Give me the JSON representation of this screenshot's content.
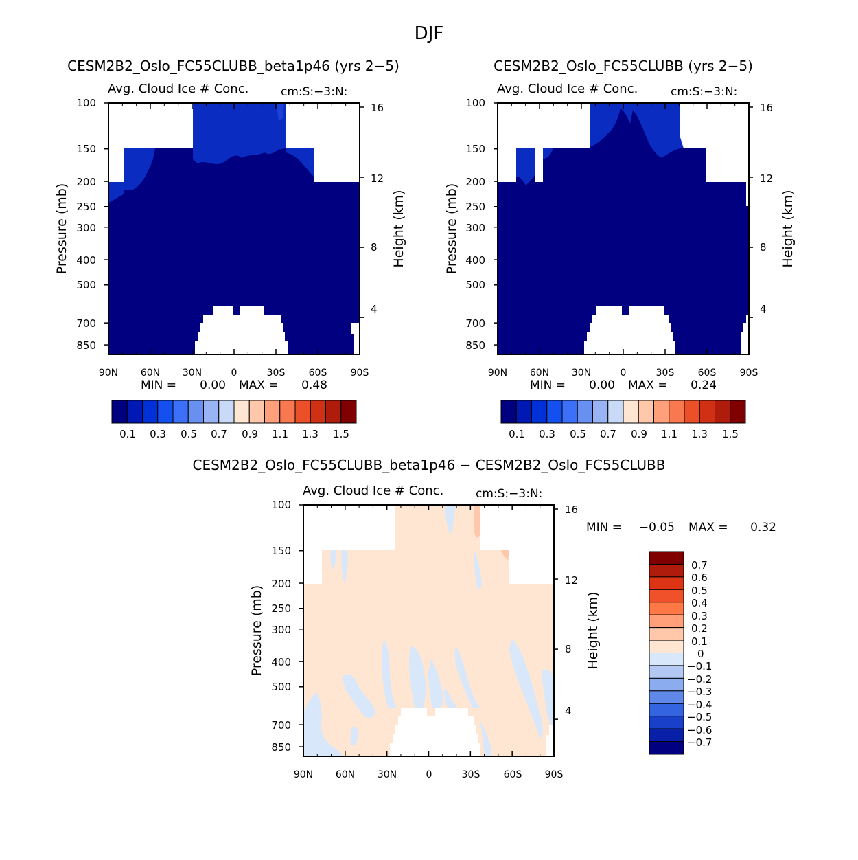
{
  "figure_title": "DJF",
  "chart_data": [
    {
      "type": "contour",
      "title": "CESM2B2_Oslo_FC55CLUBB_beta1p46 (yrs 2-5)",
      "subtitle": "Avg. Cloud Ice # Conc.",
      "units": "cm:S:-3:N:",
      "xlabel": "",
      "ylabel": "Pressure (mb)",
      "y2label": "Height (km)",
      "x_ticks": [
        "90N",
        "60N",
        "30N",
        "0",
        "30S",
        "60S",
        "90S"
      ],
      "y_ticks": [
        "100",
        "150",
        "200",
        "250",
        "300",
        "400",
        "500",
        "700",
        "850"
      ],
      "y2_ticks": [
        "16",
        "12",
        "8",
        "4"
      ],
      "min_label": "MIN =",
      "min_value": "0.00",
      "max_label": "MAX =",
      "max_value": "0.48",
      "colorbar_labels": [
        "0.1",
        "0.3",
        "0.5",
        "0.7",
        "0.9",
        "1.1",
        "1.3",
        "1.5"
      ],
      "colorbar_levels": [
        0.1,
        0.2,
        0.3,
        0.4,
        0.5,
        0.6,
        0.7,
        0.8,
        0.9,
        1.0,
        1.1,
        1.2,
        1.3,
        1.4,
        1.5
      ]
    },
    {
      "type": "contour",
      "title": "CESM2B2_Oslo_FC55CLUBB (yrs 2-5)",
      "subtitle": "Avg. Cloud Ice # Conc.",
      "units": "cm:S:-3:N:",
      "xlabel": "",
      "ylabel": "Pressure (mb)",
      "y2label": "Height (km)",
      "x_ticks": [
        "90N",
        "60N",
        "30N",
        "0",
        "30S",
        "60S",
        "90S"
      ],
      "y_ticks": [
        "100",
        "150",
        "200",
        "250",
        "300",
        "400",
        "500",
        "700",
        "850"
      ],
      "y2_ticks": [
        "16",
        "12",
        "8",
        "4"
      ],
      "min_label": "MIN =",
      "min_value": "0.00",
      "max_label": "MAX =",
      "max_value": "0.24",
      "colorbar_labels": [
        "0.1",
        "0.3",
        "0.5",
        "0.7",
        "0.9",
        "1.1",
        "1.3",
        "1.5"
      ],
      "colorbar_levels": [
        0.1,
        0.2,
        0.3,
        0.4,
        0.5,
        0.6,
        0.7,
        0.8,
        0.9,
        1.0,
        1.1,
        1.2,
        1.3,
        1.4,
        1.5
      ]
    },
    {
      "type": "contour",
      "title": "CESM2B2_Oslo_FC55CLUBB_beta1p46 - CESM2B2_Oslo_FC55CLUBB",
      "subtitle": "Avg. Cloud Ice # Conc.",
      "units": "cm:S:-3:N:",
      "xlabel": "",
      "ylabel": "Pressure (mb)",
      "y2label": "Height (km)",
      "x_ticks": [
        "90N",
        "60N",
        "30N",
        "0",
        "30S",
        "60S",
        "90S"
      ],
      "y_ticks": [
        "100",
        "150",
        "200",
        "250",
        "300",
        "400",
        "500",
        "700",
        "850"
      ],
      "y2_ticks": [
        "16",
        "12",
        "8",
        "4"
      ],
      "min_label": "MIN =",
      "min_value": "-0.05",
      "max_label": "MAX =",
      "max_value": "0.32",
      "colorbar_labels": [
        "0.7",
        "0.6",
        "0.5",
        "0.4",
        "0.3",
        "0.2",
        "0.1",
        "0",
        "-0.1",
        "-0.2",
        "-0.3",
        "-0.4",
        "-0.5",
        "-0.6",
        "-0.7"
      ],
      "colorbar_levels": [
        -0.7,
        -0.6,
        -0.5,
        -0.4,
        -0.3,
        -0.2,
        -0.1,
        0,
        0.1,
        0.2,
        0.3,
        0.4,
        0.5,
        0.6,
        0.7
      ]
    }
  ],
  "colors": {
    "cb_a": [
      "#000080",
      "#0018b4",
      "#0030d8",
      "#1450f0",
      "#3c70f8",
      "#6890f0",
      "#98b4f4",
      "#c8daf8",
      "#ffe6d2",
      "#ffc8aa",
      "#ffa07a",
      "#f87850",
      "#ec5028",
      "#d03014",
      "#b01c0c",
      "#800000"
    ],
    "cb_d": [
      "#800000",
      "#b01c0c",
      "#dc3414",
      "#f0502a",
      "#ff7846",
      "#ffa07a",
      "#ffc8aa",
      "#ffe6d2",
      "#d8e8fa",
      "#b4c8f4",
      "#8cacf0",
      "#6088e8",
      "#3464e0",
      "#1840c8",
      "#0820a8",
      "#000080"
    ]
  }
}
